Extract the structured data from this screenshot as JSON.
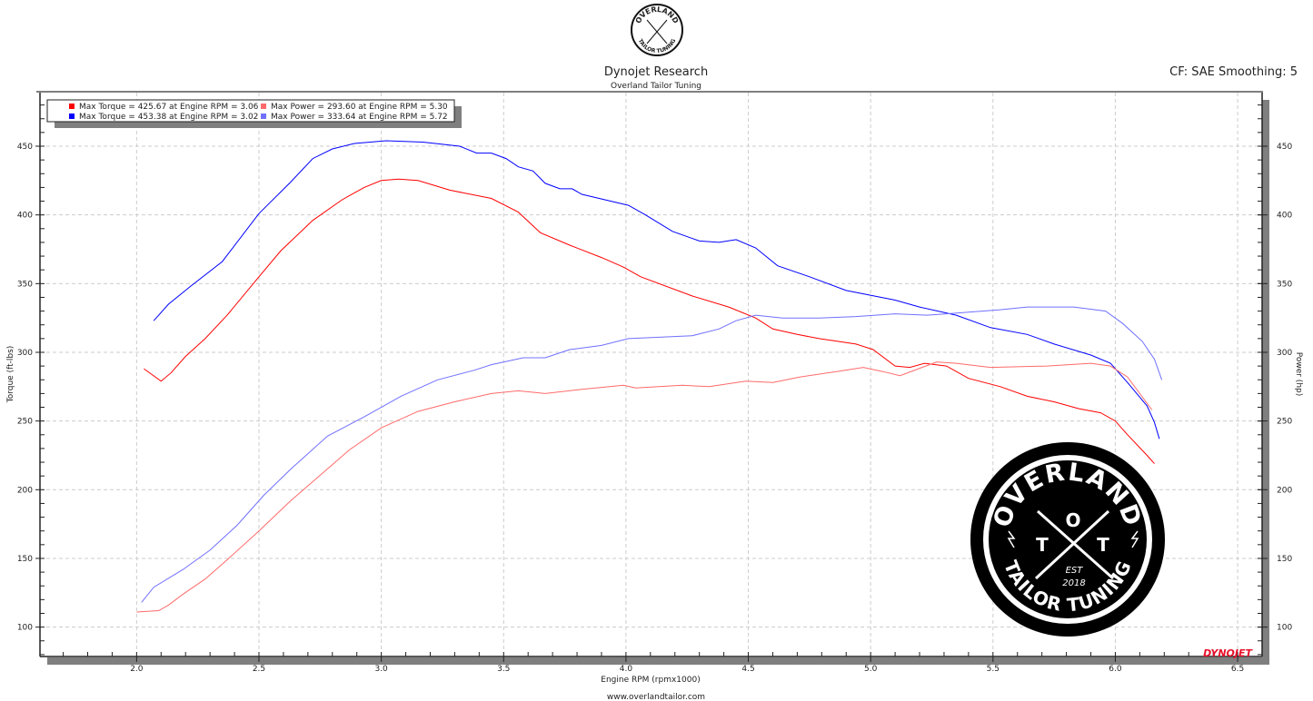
{
  "header": {
    "title": "Dynojet Research",
    "subtitle": "Overland Tailor Tuning",
    "cf_info": "CF: SAE Smoothing: 5",
    "footer_url": "www.overlandtailor.com",
    "dynojet_logo": "DYNOJET",
    "small_logo": {
      "top": "OVERLAND",
      "letters": "T O T",
      "bottom": "TAILOR TUNING",
      "est": "EST 2018"
    }
  },
  "watermark": {
    "top": "OVERLAND",
    "left": "T",
    "center": "O",
    "right": "T",
    "est": "EST",
    "year": "2018",
    "bottom": "TAILOR TUNING"
  },
  "chart_data": {
    "type": "line",
    "xlabel": "Engine RPM (rpmx1000)",
    "ylabel": "Torque (ft-lbs)",
    "y2label": "Power (hp)",
    "xlim": [
      1.605,
      6.6
    ],
    "ylim": [
      78.6,
      489
    ],
    "xticks": [
      "2.0",
      "2.5",
      "3.0",
      "3.5",
      "4.0",
      "4.5",
      "5.0",
      "5.5",
      "6.0",
      "6.5"
    ],
    "yticks": [
      "100",
      "150",
      "200",
      "250",
      "300",
      "350",
      "400",
      "450"
    ],
    "grid": true,
    "legend_position": "top-left",
    "legend": [
      {
        "text": "Max Torque = 425.67 at Engine RPM = 3.06",
        "color": "#ff0000"
      },
      {
        "text": "Max Power = 293.60 at Engine RPM = 5.30",
        "color": "#ff6a6a"
      },
      {
        "text": "Max Torque = 453.38 at Engine RPM = 3.02",
        "color": "#0000ff"
      },
      {
        "text": "Max Power = 333.64 at Engine RPM = 5.72",
        "color": "#7070ff"
      }
    ],
    "series": [
      {
        "color": "#ff0000",
        "points": [
          [
            2.03,
            288
          ],
          [
            2.1,
            279
          ],
          [
            2.14,
            285
          ],
          [
            2.2,
            297
          ],
          [
            2.28,
            310
          ],
          [
            2.37,
            327
          ],
          [
            2.5,
            355
          ],
          [
            2.59,
            374
          ],
          [
            2.72,
            396
          ],
          [
            2.84,
            411
          ],
          [
            2.93,
            420
          ],
          [
            3.0,
            425
          ],
          [
            3.07,
            426
          ],
          [
            3.15,
            425
          ],
          [
            3.28,
            418
          ],
          [
            3.45,
            412
          ],
          [
            3.56,
            402
          ],
          [
            3.65,
            387
          ],
          [
            3.77,
            378
          ],
          [
            3.9,
            369
          ],
          [
            3.99,
            362
          ],
          [
            4.06,
            355
          ],
          [
            4.27,
            341
          ],
          [
            4.42,
            333
          ],
          [
            4.53,
            325
          ],
          [
            4.6,
            317
          ],
          [
            4.7,
            313
          ],
          [
            4.79,
            310
          ],
          [
            4.94,
            306
          ],
          [
            5.01,
            302
          ],
          [
            5.1,
            290
          ],
          [
            5.16,
            289
          ],
          [
            5.22,
            292
          ],
          [
            5.31,
            290
          ],
          [
            5.4,
            281
          ],
          [
            5.53,
            275
          ],
          [
            5.64,
            268
          ],
          [
            5.75,
            264
          ],
          [
            5.85,
            259
          ],
          [
            5.94,
            256
          ],
          [
            6.0,
            250
          ],
          [
            6.05,
            240
          ],
          [
            6.13,
            225
          ],
          [
            6.16,
            219
          ]
        ]
      },
      {
        "color": "#0000ff",
        "points": [
          [
            2.07,
            323
          ],
          [
            2.13,
            335
          ],
          [
            2.22,
            348
          ],
          [
            2.35,
            366
          ],
          [
            2.5,
            401
          ],
          [
            2.63,
            424
          ],
          [
            2.72,
            441
          ],
          [
            2.8,
            448
          ],
          [
            2.89,
            452
          ],
          [
            3.02,
            454
          ],
          [
            3.17,
            453
          ],
          [
            3.32,
            450
          ],
          [
            3.39,
            445
          ],
          [
            3.45,
            445
          ],
          [
            3.51,
            441
          ],
          [
            3.56,
            435
          ],
          [
            3.62,
            432
          ],
          [
            3.67,
            423
          ],
          [
            3.73,
            419
          ],
          [
            3.78,
            419
          ],
          [
            3.82,
            415
          ],
          [
            4.01,
            407
          ],
          [
            4.08,
            400
          ],
          [
            4.19,
            388
          ],
          [
            4.3,
            381
          ],
          [
            4.38,
            380
          ],
          [
            4.45,
            382
          ],
          [
            4.53,
            376
          ],
          [
            4.62,
            363
          ],
          [
            4.75,
            355
          ],
          [
            4.9,
            345
          ],
          [
            5.1,
            338
          ],
          [
            5.2,
            333
          ],
          [
            5.35,
            327
          ],
          [
            5.49,
            318
          ],
          [
            5.64,
            313
          ],
          [
            5.75,
            306
          ],
          [
            5.9,
            298
          ],
          [
            5.98,
            292
          ],
          [
            6.05,
            278
          ],
          [
            6.13,
            261
          ],
          [
            6.16,
            249
          ],
          [
            6.18,
            237
          ]
        ]
      },
      {
        "color": "#ff6a6a",
        "points": [
          [
            2.0,
            111
          ],
          [
            2.09,
            112
          ],
          [
            2.13,
            116
          ],
          [
            2.19,
            124
          ],
          [
            2.28,
            135
          ],
          [
            2.37,
            149
          ],
          [
            2.5,
            170
          ],
          [
            2.63,
            192
          ],
          [
            2.74,
            209
          ],
          [
            2.87,
            229
          ],
          [
            3.0,
            245
          ],
          [
            3.15,
            257
          ],
          [
            3.3,
            264
          ],
          [
            3.45,
            270
          ],
          [
            3.56,
            272
          ],
          [
            3.67,
            270
          ],
          [
            3.82,
            273
          ],
          [
            3.99,
            276
          ],
          [
            4.04,
            274
          ],
          [
            4.23,
            276
          ],
          [
            4.34,
            275
          ],
          [
            4.49,
            279
          ],
          [
            4.6,
            278
          ],
          [
            4.71,
            282
          ],
          [
            4.86,
            286
          ],
          [
            4.97,
            289
          ],
          [
            5.05,
            286
          ],
          [
            5.12,
            283
          ],
          [
            5.27,
            293
          ],
          [
            5.35,
            292
          ],
          [
            5.49,
            289
          ],
          [
            5.72,
            290
          ],
          [
            5.9,
            292
          ],
          [
            5.98,
            290
          ],
          [
            6.05,
            282
          ],
          [
            6.15,
            258
          ]
        ]
      },
      {
        "color": "#7070ff",
        "points": [
          [
            2.02,
            118
          ],
          [
            2.07,
            129
          ],
          [
            2.19,
            142
          ],
          [
            2.3,
            156
          ],
          [
            2.41,
            174
          ],
          [
            2.52,
            196
          ],
          [
            2.63,
            215
          ],
          [
            2.78,
            239
          ],
          [
            2.93,
            253
          ],
          [
            3.08,
            268
          ],
          [
            3.23,
            280
          ],
          [
            3.38,
            287
          ],
          [
            3.45,
            291
          ],
          [
            3.58,
            296
          ],
          [
            3.67,
            296
          ],
          [
            3.77,
            302
          ],
          [
            3.9,
            305
          ],
          [
            4.01,
            310
          ],
          [
            4.27,
            312
          ],
          [
            4.38,
            317
          ],
          [
            4.45,
            323
          ],
          [
            4.53,
            327
          ],
          [
            4.64,
            325
          ],
          [
            4.79,
            325
          ],
          [
            4.94,
            326
          ],
          [
            5.1,
            328
          ],
          [
            5.23,
            327
          ],
          [
            5.31,
            328
          ],
          [
            5.53,
            331
          ],
          [
            5.64,
            333
          ],
          [
            5.83,
            333
          ],
          [
            5.96,
            330
          ],
          [
            6.03,
            321
          ],
          [
            6.11,
            308
          ],
          [
            6.16,
            295
          ],
          [
            6.19,
            280
          ]
        ]
      }
    ]
  }
}
